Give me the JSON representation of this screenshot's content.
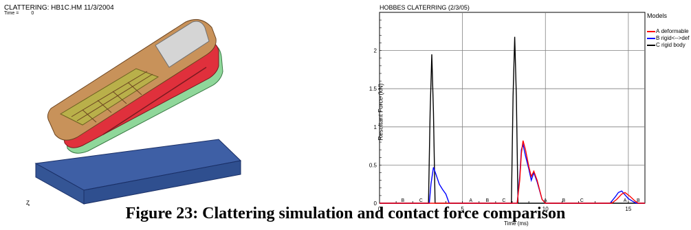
{
  "left_panel": {
    "title": "CLATTERING: HB1C.HM 11/3/2004",
    "time_label": "Time =",
    "time_value": "0",
    "axis_triad": [
      "Z",
      "Y"
    ]
  },
  "chart_data": {
    "type": "line",
    "title": "HOBBES CLATERRING (2/3/05)",
    "xlabel": "Time (ms)",
    "ylabel": "Resultant Force (kN)",
    "xlim": [
      0,
      16
    ],
    "ylim": [
      0,
      2.5
    ],
    "x_ticks": [
      "0",
      "5",
      "10",
      "15"
    ],
    "y_ticks": [
      "0",
      "0.5",
      "1",
      "1.5",
      "2"
    ],
    "grid": true,
    "legend_title": "Models",
    "legend_position": "right",
    "series": [
      {
        "name": "deformable",
        "marker_letter": "A",
        "color": "#ff0000",
        "points": [
          [
            0,
            0
          ],
          [
            8.3,
            0
          ],
          [
            8.45,
            0.3
          ],
          [
            8.55,
            0.65
          ],
          [
            8.65,
            0.82
          ],
          [
            8.8,
            0.7
          ],
          [
            9.0,
            0.48
          ],
          [
            9.15,
            0.35
          ],
          [
            9.3,
            0.42
          ],
          [
            9.5,
            0.3
          ],
          [
            9.8,
            0.05
          ],
          [
            10.0,
            0
          ],
          [
            14.0,
            0
          ],
          [
            14.3,
            0.05
          ],
          [
            14.6,
            0.12
          ],
          [
            14.8,
            0.14
          ],
          [
            15.1,
            0.09
          ],
          [
            15.4,
            0.03
          ],
          [
            15.6,
            0
          ],
          [
            16,
            0
          ]
        ]
      },
      {
        "name": "rigid<-->def",
        "marker_letter": "B",
        "color": "#0000ff",
        "points": [
          [
            0,
            0
          ],
          [
            3.0,
            0
          ],
          [
            3.1,
            0.25
          ],
          [
            3.25,
            0.47
          ],
          [
            3.4,
            0.38
          ],
          [
            3.6,
            0.25
          ],
          [
            3.8,
            0.18
          ],
          [
            4.0,
            0.12
          ],
          [
            4.2,
            0
          ],
          [
            8.3,
            0
          ],
          [
            8.45,
            0.35
          ],
          [
            8.55,
            0.7
          ],
          [
            8.65,
            0.77
          ],
          [
            8.8,
            0.62
          ],
          [
            9.0,
            0.45
          ],
          [
            9.15,
            0.3
          ],
          [
            9.3,
            0.4
          ],
          [
            9.5,
            0.28
          ],
          [
            9.8,
            0.05
          ],
          [
            10.0,
            0
          ],
          [
            13.9,
            0
          ],
          [
            14.2,
            0.08
          ],
          [
            14.4,
            0.14
          ],
          [
            14.6,
            0.16
          ],
          [
            14.8,
            0.11
          ],
          [
            15.0,
            0.06
          ],
          [
            15.3,
            0.02
          ],
          [
            15.5,
            0
          ],
          [
            16,
            0
          ]
        ]
      },
      {
        "name": "rigid body",
        "marker_letter": "C",
        "color": "#000000",
        "points": [
          [
            0,
            0
          ],
          [
            2.95,
            0
          ],
          [
            3.05,
            1.2
          ],
          [
            3.15,
            1.95
          ],
          [
            3.25,
            1.2
          ],
          [
            3.35,
            0
          ],
          [
            7.95,
            0
          ],
          [
            8.05,
            1.4
          ],
          [
            8.15,
            2.18
          ],
          [
            8.25,
            1.4
          ],
          [
            8.35,
            0
          ],
          [
            16,
            0
          ]
        ]
      }
    ],
    "axis_markers": [
      {
        "x": 1.4,
        "label": "B"
      },
      {
        "x": 2.5,
        "label": "C"
      },
      {
        "x": 5.5,
        "label": "A"
      },
      {
        "x": 6.5,
        "label": "B"
      },
      {
        "x": 7.5,
        "label": "C"
      },
      {
        "x": 10.0,
        "label": "A"
      },
      {
        "x": 11.1,
        "label": "B"
      },
      {
        "x": 12.2,
        "label": "C"
      },
      {
        "x": 14.8,
        "label": "A"
      },
      {
        "x": 15.6,
        "label": "B"
      }
    ]
  },
  "caption": "Figure 23: Clattering simulation and contact force comparison"
}
